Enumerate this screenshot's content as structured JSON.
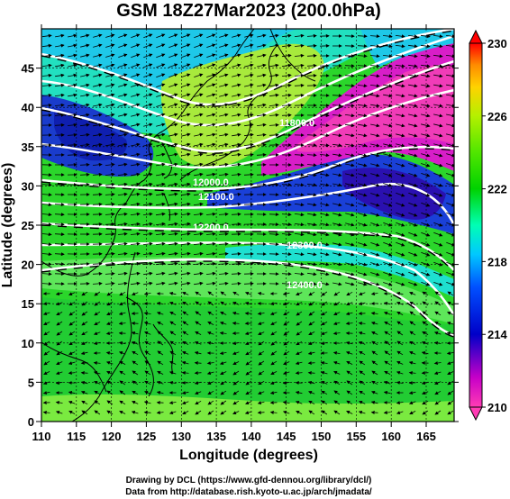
{
  "title": "GSM 18Z27Mar2023 (200.0hPa)",
  "x_axis": {
    "label": "Longitude (degrees)",
    "ticks": [
      "110",
      "115",
      "120",
      "125",
      "130",
      "135",
      "140",
      "145",
      "150",
      "155",
      "160",
      "165"
    ],
    "range": [
      110,
      169
    ]
  },
  "y_axis": {
    "label": "Latitude (degrees)",
    "ticks": [
      "0",
      "5",
      "10",
      "15",
      "20",
      "25",
      "30",
      "35",
      "40",
      "45"
    ],
    "range": [
      0,
      50
    ]
  },
  "colorbar": {
    "ticks": [
      "230",
      "226",
      "222",
      "218",
      "214",
      "210"
    ],
    "range": [
      210,
      230
    ],
    "colors": [
      "#ff3cb4",
      "#c800c8",
      "#0000c8",
      "#0050ff",
      "#00c8ff",
      "#00ffb4",
      "#00d200",
      "#50e600",
      "#b4f000",
      "#ffd200",
      "#ff8c00",
      "#ff0000"
    ]
  },
  "contour_labels": [
    "11800.0",
    "12000.0",
    "12100.0",
    "12200.0",
    "12300.0",
    "12400.0"
  ],
  "credits": {
    "line1": "Drawing by DCL (https://www.gfd-dennou.org/library/dcl/)",
    "line2": "Data from http://database.rish.kyoto-u.ac.jp/arch/jmadata/"
  }
}
